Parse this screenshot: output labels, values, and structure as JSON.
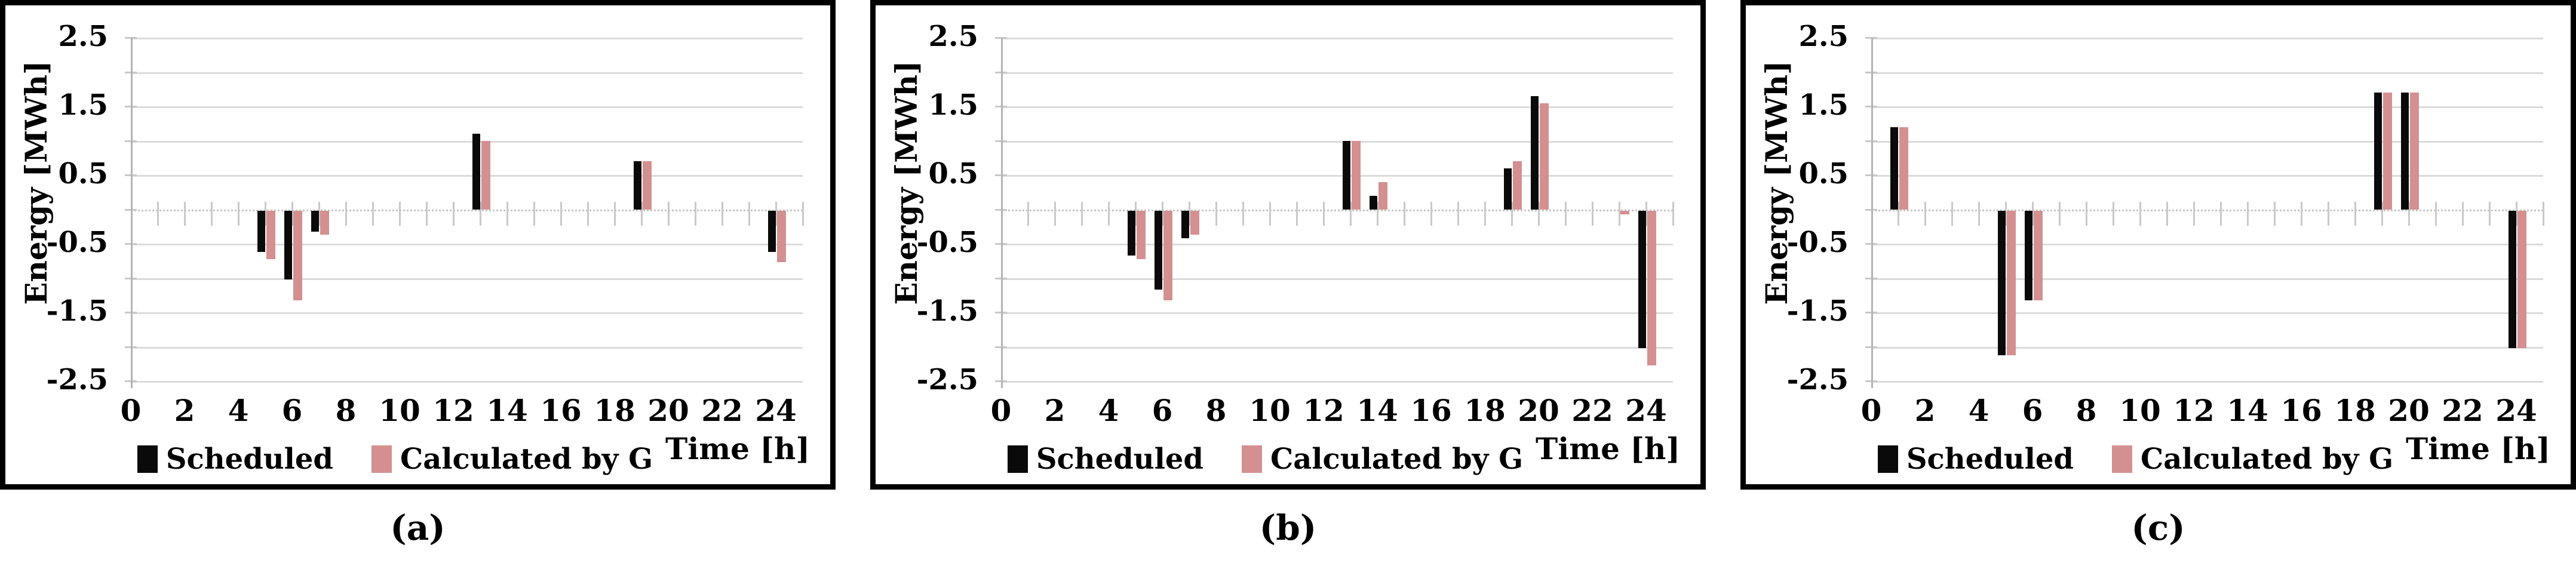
{
  "figure": {
    "background": "#ffffff",
    "y_tick_labels": [
      "2.5",
      "1.5",
      "0.5",
      "-0.5",
      "-1.5",
      "-2.5"
    ],
    "x_tick_labels": [
      "0",
      "2",
      "4",
      "6",
      "8",
      "10",
      "12",
      "14",
      "16",
      "18",
      "20",
      "22",
      "24"
    ],
    "colors": {
      "scheduled": "#0a0a0a",
      "calculated": "#d49090",
      "gridline": "#dbdbdb",
      "zero_line": "#c6c6c6",
      "axis_line": "#b4b4b4",
      "tick": "#c9c9c9",
      "panel_border": "#000000"
    }
  },
  "chart_data": [
    {
      "type": "bar",
      "panel_label": "(a)",
      "title": "",
      "xlabel": "Time [h]",
      "ylabel": "Energy [MWh]",
      "ylim": [
        -2.5,
        2.5
      ],
      "xlim": [
        0,
        25
      ],
      "grid": "horizontal",
      "legend_position": "bottom",
      "x": [
        5,
        6,
        7,
        13,
        19,
        24
      ],
      "series": [
        {
          "name": "Scheduled",
          "values": [
            -0.6,
            -1.0,
            -0.3,
            1.1,
            0.7,
            -0.6
          ]
        },
        {
          "name": "Calculated by G",
          "values": [
            -0.7,
            -1.3,
            -0.35,
            1.0,
            0.7,
            -0.75
          ]
        }
      ]
    },
    {
      "type": "bar",
      "panel_label": "(b)",
      "title": "",
      "xlabel": "Time [h]",
      "ylabel": "Energy [MWh]",
      "ylim": [
        -2.5,
        2.5
      ],
      "xlim": [
        0,
        25
      ],
      "grid": "horizontal",
      "legend_position": "bottom",
      "x": [
        5,
        6,
        7,
        13,
        14,
        19,
        20,
        23,
        24
      ],
      "series": [
        {
          "name": "Scheduled",
          "values": [
            -0.65,
            -1.15,
            -0.4,
            1.0,
            0.2,
            0.6,
            1.65,
            0,
            -2.0
          ]
        },
        {
          "name": "Calculated by G",
          "values": [
            -0.7,
            -1.3,
            -0.35,
            1.0,
            0.4,
            0.7,
            1.55,
            -0.05,
            -2.25
          ]
        }
      ]
    },
    {
      "type": "bar",
      "panel_label": "(c)",
      "title": "",
      "xlabel": "Time [h]",
      "ylabel": "Energy [MWh]",
      "ylim": [
        -2.5,
        2.5
      ],
      "xlim": [
        0,
        25
      ],
      "grid": "horizontal",
      "legend_position": "bottom",
      "x": [
        1,
        5,
        6,
        19,
        20,
        24
      ],
      "series": [
        {
          "name": "Scheduled",
          "values": [
            1.2,
            -2.1,
            -1.3,
            1.7,
            1.7,
            -2.0
          ]
        },
        {
          "name": "Calculated by G",
          "values": [
            1.2,
            -2.1,
            -1.3,
            1.7,
            1.7,
            -2.0
          ]
        }
      ]
    }
  ]
}
